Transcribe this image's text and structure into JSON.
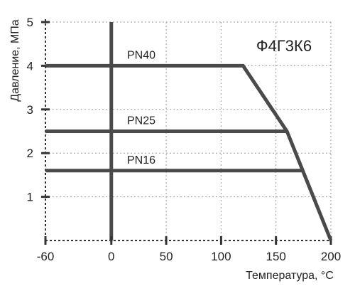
{
  "chart_data": {
    "type": "line",
    "title": "Ф4Г3К6",
    "xlabel": "Температура, °C",
    "ylabel": "Давление, МПа",
    "xlim": [
      -60,
      200
    ],
    "ylim": [
      0,
      5
    ],
    "x_ticks": [
      -60,
      0,
      50,
      100,
      150,
      200
    ],
    "y_ticks": [
      1,
      2,
      3,
      4,
      5
    ],
    "grid": true,
    "grid_style": "dotted",
    "colors": {
      "line": "#4a4a4a",
      "grid": "#9a9a9a",
      "axis": "#333333"
    },
    "series": [
      {
        "name": "PN40",
        "x": [
          -60,
          120,
          160,
          200
        ],
        "y": [
          4.0,
          4.0,
          2.5,
          0
        ]
      },
      {
        "name": "PN25",
        "x": [
          -60,
          160
        ],
        "y": [
          2.5,
          2.5
        ]
      },
      {
        "name": "PN16",
        "x": [
          -60,
          175
        ],
        "y": [
          1.6,
          1.6
        ]
      }
    ]
  }
}
